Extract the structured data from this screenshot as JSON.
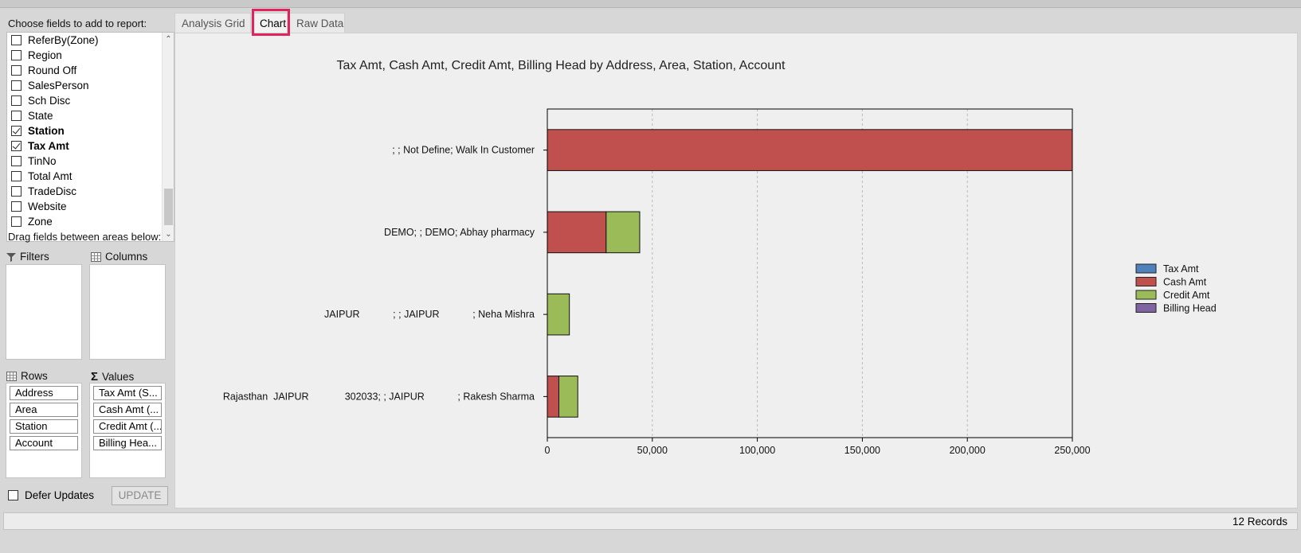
{
  "left_pane": {
    "choose_label": "Choose fields to add to report:",
    "fields": [
      {
        "label": "ReferBy(Zone)",
        "checked": false
      },
      {
        "label": "Region",
        "checked": false
      },
      {
        "label": "Round Off",
        "checked": false
      },
      {
        "label": "SalesPerson",
        "checked": false
      },
      {
        "label": "Sch Disc",
        "checked": false
      },
      {
        "label": "State",
        "checked": false
      },
      {
        "label": "Station",
        "checked": true
      },
      {
        "label": "Tax Amt",
        "checked": true
      },
      {
        "label": "TinNo",
        "checked": false
      },
      {
        "label": "Total Amt",
        "checked": false
      },
      {
        "label": "TradeDisc",
        "checked": false
      },
      {
        "label": "Website",
        "checked": false
      },
      {
        "label": "Zone",
        "checked": false
      }
    ],
    "drag_label": "Drag fields between areas below:",
    "filters_label": "Filters",
    "columns_label": "Columns",
    "rows_label": "Rows",
    "values_label": "Values",
    "rows": [
      "Address",
      "Area",
      "Station",
      "Account"
    ],
    "values": [
      "Tax Amt (S...",
      "Cash Amt (...",
      "Credit Amt (...",
      "Billing Hea..."
    ],
    "defer_label": "Defer Updates",
    "update_label": "UPDATE"
  },
  "tabs": [
    "Analysis Grid",
    "Chart",
    "Raw Data"
  ],
  "active_tab": "Chart",
  "status": {
    "records": "12 Records"
  },
  "chart_data": {
    "type": "bar",
    "orientation": "horizontal",
    "stacked": true,
    "title": "Tax Amt, Cash Amt, Credit Amt, Billing Head by Address, Area, Station, Account",
    "categories": [
      "; ; Not Define; Walk In Customer",
      "DEMO; ; DEMO; Abhay pharmacy",
      "JAIPUR            ; ; JAIPUR            ; Neha Mishra",
      "Rajasthan  JAIPUR             302033; ; JAIPUR            ; Rakesh Sharma"
    ],
    "series": [
      {
        "name": "Tax Amt",
        "color": "#4f81bd",
        "values": [
          0,
          0,
          0,
          0
        ]
      },
      {
        "name": "Cash Amt",
        "color": "#c0504d",
        "values": [
          250000,
          28000,
          0,
          5500
        ]
      },
      {
        "name": "Credit Amt",
        "color": "#9bbb59",
        "values": [
          0,
          16000,
          10500,
          9000
        ]
      },
      {
        "name": "Billing Head",
        "color": "#8064a2",
        "values": [
          0,
          0,
          0,
          0
        ]
      }
    ],
    "xlim": [
      0,
      250000
    ],
    "xticks": [
      0,
      50000,
      100000,
      150000,
      200000,
      250000
    ],
    "xtick_labels": [
      "0",
      "50,000",
      "100,000",
      "150,000",
      "200,000",
      "250,000"
    ],
    "grid": true,
    "legend_position": "right"
  }
}
